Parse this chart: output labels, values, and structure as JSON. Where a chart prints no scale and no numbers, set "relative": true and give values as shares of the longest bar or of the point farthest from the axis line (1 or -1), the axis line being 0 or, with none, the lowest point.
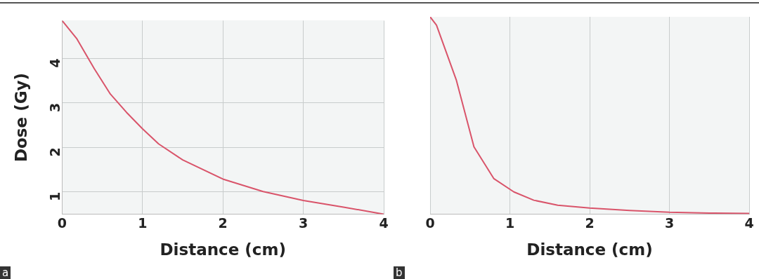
{
  "chart_data": [
    {
      "type": "line",
      "xlabel": "Distance (cm)",
      "ylabel": "Dose (Gy)",
      "annotations": [
        "a"
      ],
      "series": [
        {
          "color": "#d9546a",
          "x": [
            0,
            0.18,
            0.4,
            0.6,
            0.8,
            1.0,
            1.2,
            1.5,
            2.0,
            2.5,
            3.0,
            3.5,
            4.0
          ],
          "values": [
            4.85,
            4.45,
            3.77,
            3.2,
            2.79,
            2.42,
            2.08,
            1.72,
            1.29,
            1.01,
            0.81,
            0.66,
            0.5
          ]
        }
      ],
      "xlim": [
        0,
        4
      ],
      "xticks": [
        0,
        1,
        2,
        3,
        4
      ],
      "ylim": [
        0.5,
        4.85
      ],
      "yticks": [
        1,
        2,
        3,
        4
      ],
      "grid": true,
      "marker": "none",
      "line_style": "solid"
    },
    {
      "type": "line",
      "xlabel": "Distance (cm)",
      "annotations": [
        "b"
      ],
      "series": [
        {
          "color": "#d9546a",
          "x": [
            0,
            0.08,
            0.33,
            0.55,
            0.8,
            1.05,
            1.3,
            1.6,
            2.0,
            2.5,
            3.0,
            3.5,
            4.0
          ],
          "values": [
            1,
            0.958,
            0.678,
            0.341,
            0.18,
            0.113,
            0.071,
            0.046,
            0.031,
            0.019,
            0.01,
            0.006,
            0.004
          ]
        }
      ],
      "relative": true,
      "xlim": [
        0,
        4
      ],
      "xticks": [
        0,
        1,
        2,
        3,
        4
      ],
      "grid": "x",
      "tick_labels": "x",
      "marker": "none",
      "line_style": "solid"
    }
  ]
}
